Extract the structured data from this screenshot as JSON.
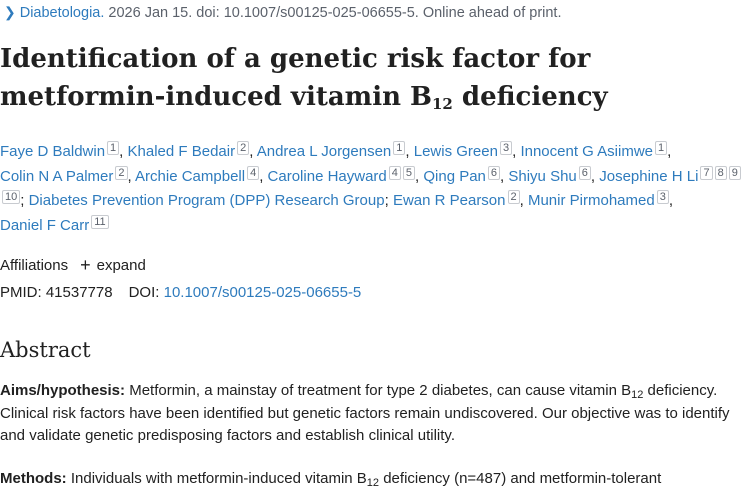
{
  "citation": {
    "chevron_icon": "chevron-right-icon",
    "journal": "Diabetologia.",
    "details": "2026 Jan 15. doi: 10.1007/s00125-025-06655-5. Online ahead of print."
  },
  "article": {
    "title_main": "Identification of a genetic risk factor for metformin-induced vitamin B",
    "title_sub": "12",
    "title_end": " deficiency"
  },
  "authors": [
    {
      "name": "Faye D Baldwin",
      "affils": [
        "1"
      ]
    },
    {
      "name": "Khaled F Bedair",
      "affils": [
        "2"
      ]
    },
    {
      "name": "Andrea L Jorgensen",
      "affils": [
        "1"
      ]
    },
    {
      "name": "Lewis Green",
      "affils": [
        "3"
      ]
    },
    {
      "name": "Innocent G Asiimwe",
      "affils": [
        "1"
      ]
    },
    {
      "name": "Colin N A Palmer",
      "affils": [
        "2"
      ]
    },
    {
      "name": "Archie Campbell",
      "affils": [
        "4"
      ]
    },
    {
      "name": "Caroline Hayward",
      "affils": [
        "4",
        "5"
      ]
    },
    {
      "name": "Qing Pan",
      "affils": [
        "6"
      ]
    },
    {
      "name": "Shiyu Shu",
      "affils": [
        "6"
      ]
    },
    {
      "name": "Josephine H Li",
      "affils": [
        "7",
        "8",
        "9",
        "10"
      ]
    },
    {
      "name": "Diabetes Prevention Program (DPP) Research Group",
      "affils": []
    },
    {
      "name": "Ewan R Pearson",
      "affils": [
        "2"
      ]
    },
    {
      "name": "Munir Pirmohamed",
      "affils": [
        "3"
      ]
    },
    {
      "name": "Daniel F Carr",
      "affils": [
        "11"
      ]
    }
  ],
  "affiliations": {
    "label": "Affiliations",
    "expand_icon": "plus-icon",
    "expand_label": "expand"
  },
  "identifiers": {
    "pmid_label": "PMID:",
    "pmid": "41537778",
    "doi_label": "DOI:",
    "doi": "10.1007/s00125-025-06655-5"
  },
  "abstract": {
    "heading": "Abstract",
    "aims_label": "Aims/hypothesis:",
    "aims_text_1": " Metformin, a mainstay of treatment for type 2 diabetes, can cause vitamin B",
    "aims_sub": "12",
    "aims_text_2": " deficiency. Clinical risk factors have been identified but genetic factors remain undiscovered. Our objective was to identify and validate genetic predisposing factors and establish clinical utility.",
    "methods_label": "Methods:",
    "methods_text_1": " Individuals with metformin-induced vitamin B",
    "methods_sub": "12",
    "methods_text_2": " deficiency (n=487) and metformin-tolerant"
  }
}
